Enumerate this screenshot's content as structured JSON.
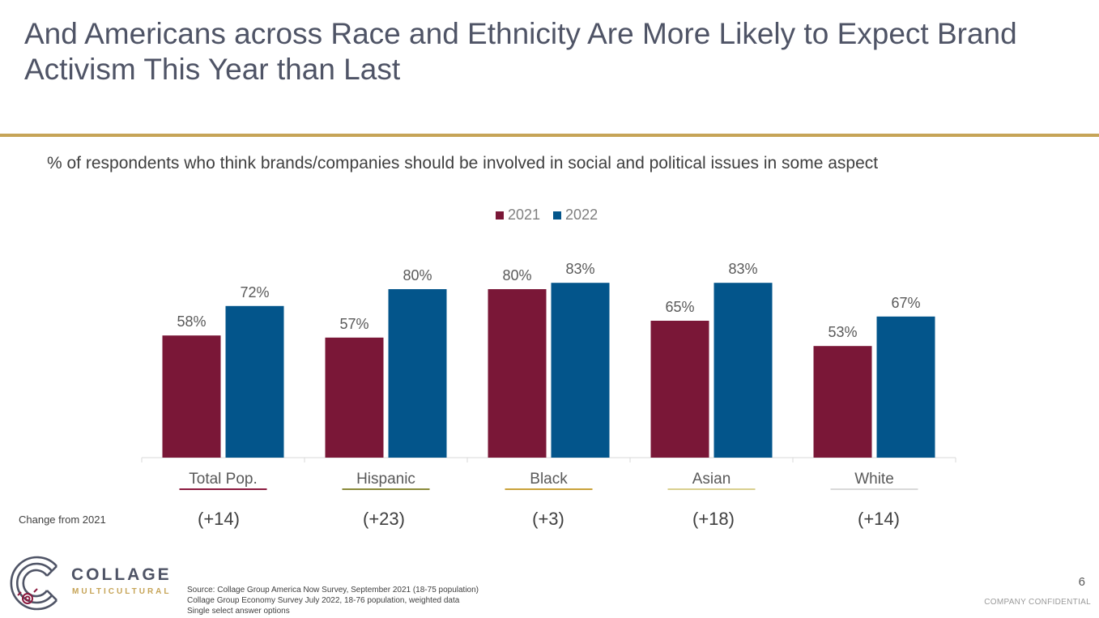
{
  "title": "And Americans across Race and Ethnicity Are More Likely to Expect Brand Activism This Year than Last",
  "colors": {
    "series_2021": "#7a1737",
    "series_2022": "#03558b",
    "accent_rule": "#c6a457"
  },
  "chart_data": {
    "type": "bar",
    "subtitle": "% of respondents who think brands/companies should be involved in social and political issues in some aspect",
    "categories": [
      "Total Pop.",
      "Hispanic",
      "Black",
      "Asian",
      "White"
    ],
    "category_underline_colors": [
      "#8b1a3f",
      "#8a8a3a",
      "#c9a23a",
      "#d9cf8f",
      "#d9d9d9"
    ],
    "series": [
      {
        "name": "2021",
        "values": [
          58,
          57,
          80,
          65,
          53
        ],
        "labels": [
          "58%",
          "57%",
          "80%",
          "65%",
          "53%"
        ],
        "color": "#7a1737"
      },
      {
        "name": "2022",
        "values": [
          72,
          80,
          83,
          83,
          67
        ],
        "labels": [
          "72%",
          "80%",
          "83%",
          "83%",
          "67%"
        ],
        "color": "#03558b"
      }
    ],
    "ylim": [
      0,
      100
    ],
    "grid": false,
    "legend": "top-center"
  },
  "change": {
    "label": "Change from 2021",
    "values": [
      "(+14)",
      "(+23)",
      "(+3)",
      "(+18)",
      "(+14)"
    ]
  },
  "logo": {
    "name": "COLLAGE",
    "sub": "MULTICULTURAL",
    "icon": "concentric-maze-logo-icon"
  },
  "source_lines": [
    "Source: Collage Group America Now Survey, September 2021 (18-75 population)",
    "Collage Group Economy Survey July 2022, 18-76 population, weighted data",
    "Single select answer options"
  ],
  "page_number": "6",
  "confidential": "COMPANY CONFIDENTIAL"
}
